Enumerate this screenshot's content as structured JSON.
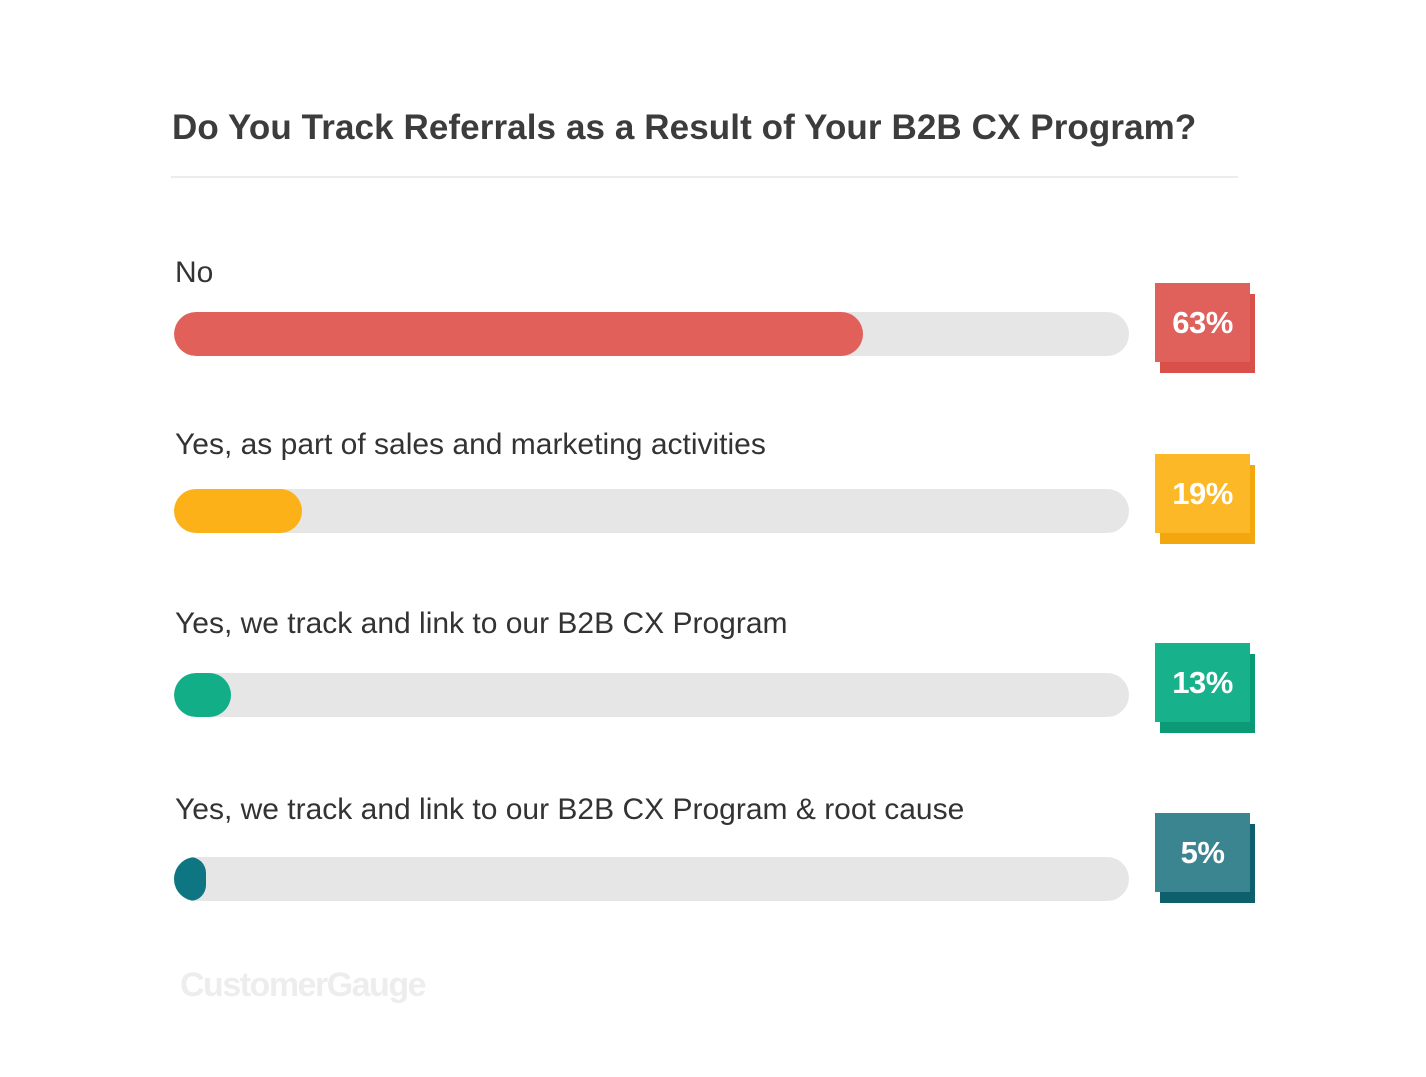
{
  "title": "Do You Track Referrals as a Result of Your B2B CX Program?",
  "brand": "CustomerGauge",
  "colors": {
    "track": "#e6e6e6",
    "divider": "#ececec"
  },
  "chart_data": {
    "type": "bar",
    "orientation": "horizontal",
    "title": "Do You Track Referrals as a Result of Your B2B CX Program?",
    "categories": [
      "No",
      "Yes, as part of sales and marketing activities",
      "Yes, we track and link to our B2B CX Program",
      "Yes, we track and link to our B2B CX Program & root cause"
    ],
    "values": [
      63,
      19,
      13,
      5
    ],
    "value_labels": [
      "63%",
      "19%",
      "13%",
      "5%"
    ],
    "unit": "%",
    "xlim": [
      0,
      100
    ],
    "grid": false,
    "legend": "none",
    "colors": [
      "#e2605a",
      "#fbb117",
      "#12ae88",
      "#0e7583"
    ],
    "badge_colors": [
      "#e0615c",
      "#fdb827",
      "#17b28c",
      "#3b8591"
    ],
    "badge_shadow_colors": [
      "#d94f4a",
      "#f2a70e",
      "#0a9a76",
      "#0c5f6b"
    ]
  }
}
